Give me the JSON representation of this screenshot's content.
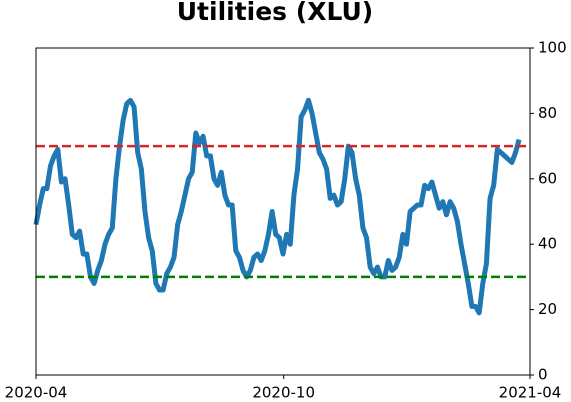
{
  "chart_data": {
    "type": "line",
    "title": "Utilities (XLU)",
    "xlim": [
      "2020-04",
      "2021-04"
    ],
    "xticks": [
      "2020-04",
      "2020-10",
      "2021-04"
    ],
    "ylim": [
      0,
      100
    ],
    "yticks": [
      0,
      20,
      40,
      60,
      80,
      100
    ],
    "series": [
      {
        "color": "#1f77b4",
        "values": [
          46,
          52,
          57,
          57,
          64,
          67,
          69,
          59,
          60,
          52,
          43,
          42,
          44,
          37,
          37,
          30,
          28,
          32,
          35,
          40,
          43,
          45,
          60,
          70,
          78,
          83,
          84,
          82,
          68,
          63,
          50,
          42,
          38,
          28,
          26,
          26,
          31,
          33,
          36,
          46,
          50,
          55,
          60,
          62,
          74,
          71,
          73,
          67,
          67,
          60,
          58,
          62,
          55,
          52,
          52,
          38,
          36,
          32,
          30,
          32,
          36,
          37,
          35,
          38,
          43,
          50,
          43,
          42,
          37,
          43,
          40,
          55,
          63,
          79,
          81,
          84,
          80,
          74,
          68,
          66,
          63,
          54,
          55,
          52,
          53,
          60,
          70,
          68,
          60,
          55,
          45,
          42,
          33,
          31,
          33,
          30,
          30,
          35,
          32,
          33,
          36,
          43,
          40,
          50,
          51,
          52,
          52,
          58,
          57,
          59,
          55,
          51,
          53,
          49,
          53,
          51,
          47,
          40,
          34,
          28,
          21,
          21,
          19,
          28,
          34,
          54,
          58,
          69,
          68,
          67,
          66,
          65,
          68,
          72,
          null,
          null,
          null
        ]
      }
    ],
    "hlines": [
      {
        "value": 70,
        "color": "#d62728"
      },
      {
        "value": 30,
        "color": "#008000"
      }
    ]
  }
}
